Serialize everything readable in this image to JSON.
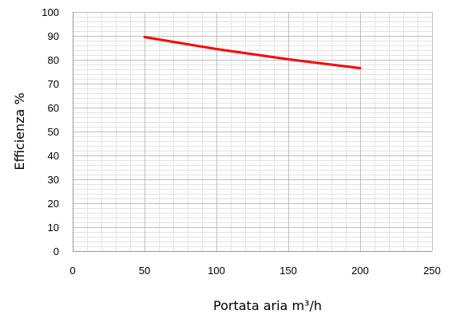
{
  "chart_data": {
    "type": "line",
    "title": "",
    "xlabel": "Portata aria m³/h",
    "ylabel": "Efficienza %",
    "xlim": [
      0,
      250
    ],
    "ylim": [
      0,
      100
    ],
    "x_ticks": [
      "0",
      "50",
      "100",
      "150",
      "200",
      "250"
    ],
    "y_ticks": [
      "0",
      "10",
      "20",
      "30",
      "40",
      "50",
      "60",
      "70",
      "80",
      "90",
      "100"
    ],
    "grid": true,
    "minor_grid": true,
    "legend": "none",
    "series": [
      {
        "color": "#ff0000",
        "x": [
          50,
          100,
          150,
          200
        ],
        "y": [
          89.5,
          84.5,
          80.2,
          76.5
        ]
      }
    ]
  },
  "colors": {
    "major_grid": "#bfbfbf",
    "minor_grid": "#e3e3e3",
    "axis": "#9a9a9a"
  }
}
